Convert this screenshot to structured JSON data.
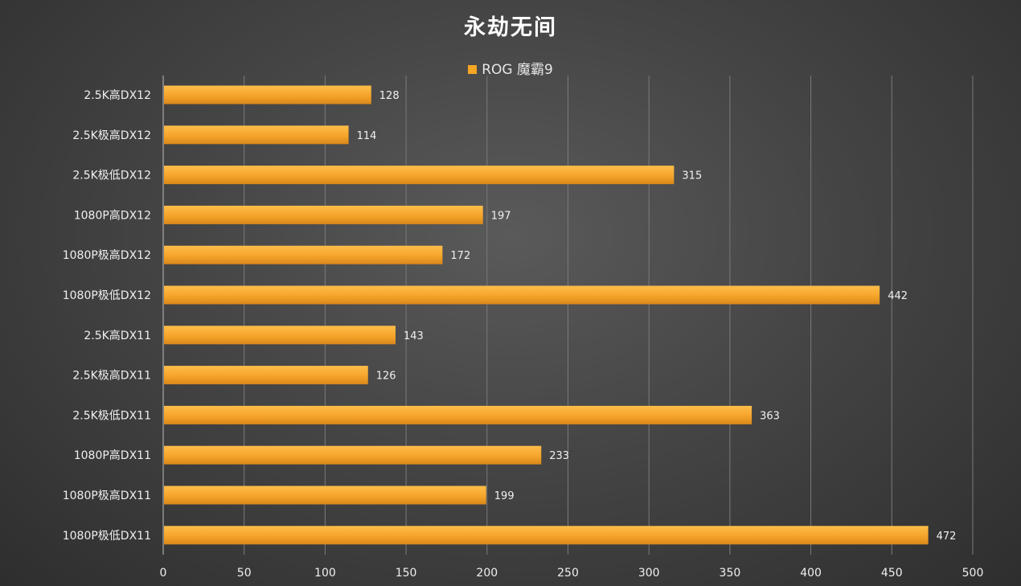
{
  "chart_data": {
    "type": "bar",
    "orientation": "horizontal",
    "title": "永劫无间",
    "categories": [
      "2.5K高DX12",
      "2.5K极高DX12",
      "2.5K极低DX12",
      "1080P高DX12",
      "1080P极高DX12",
      "1080P极低DX12",
      "2.5K高DX11",
      "2.5K极高DX11",
      "2.5K极低DX11",
      "1080P高DX11",
      "1080P极高DX11",
      "1080P极低DX11"
    ],
    "series": [
      {
        "name": "ROG 魔霸9",
        "values": [
          128,
          114,
          315,
          197,
          172,
          442,
          143,
          126,
          363,
          233,
          199,
          472
        ]
      }
    ],
    "xlim": [
      0,
      500
    ],
    "xticks": [
      0,
      50,
      100,
      150,
      200,
      250,
      300,
      350,
      400,
      450,
      500
    ],
    "grid": true,
    "legend_position": "top-center",
    "bar_color": "#F5A623"
  }
}
